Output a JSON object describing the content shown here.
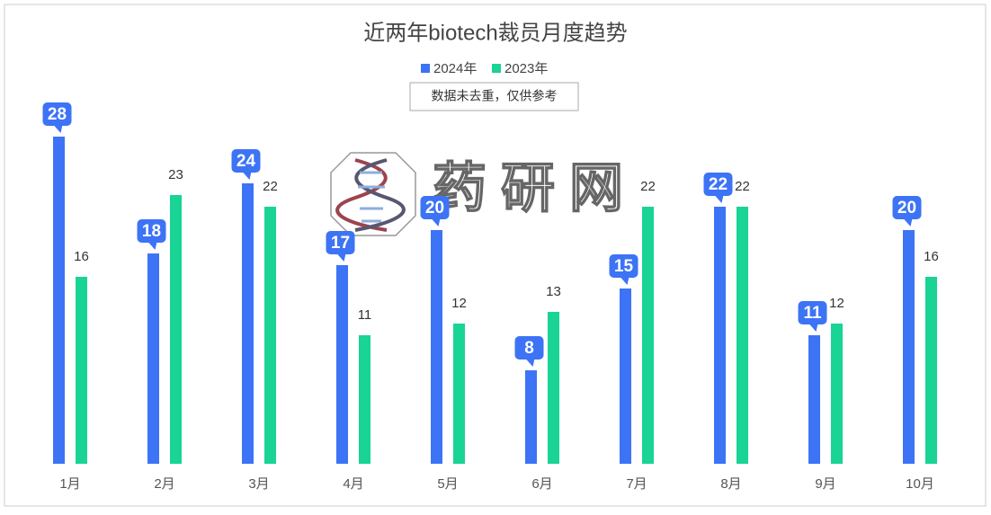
{
  "chart_data": {
    "type": "bar",
    "title": "近两年biotech裁员月度趋势",
    "note": "数据未去重，仅供参考",
    "watermark": "药研网",
    "categories": [
      "1月",
      "2月",
      "3月",
      "4月",
      "5月",
      "6月",
      "7月",
      "8月",
      "9月",
      "10月"
    ],
    "series": [
      {
        "name": "2024年",
        "color": "#3d73f5",
        "values": [
          28,
          18,
          24,
          17,
          20,
          8,
          15,
          22,
          11,
          20
        ]
      },
      {
        "name": "2023年",
        "color": "#19d494",
        "values": [
          16,
          23,
          22,
          11,
          12,
          13,
          22,
          22,
          12,
          16
        ]
      }
    ]
  }
}
